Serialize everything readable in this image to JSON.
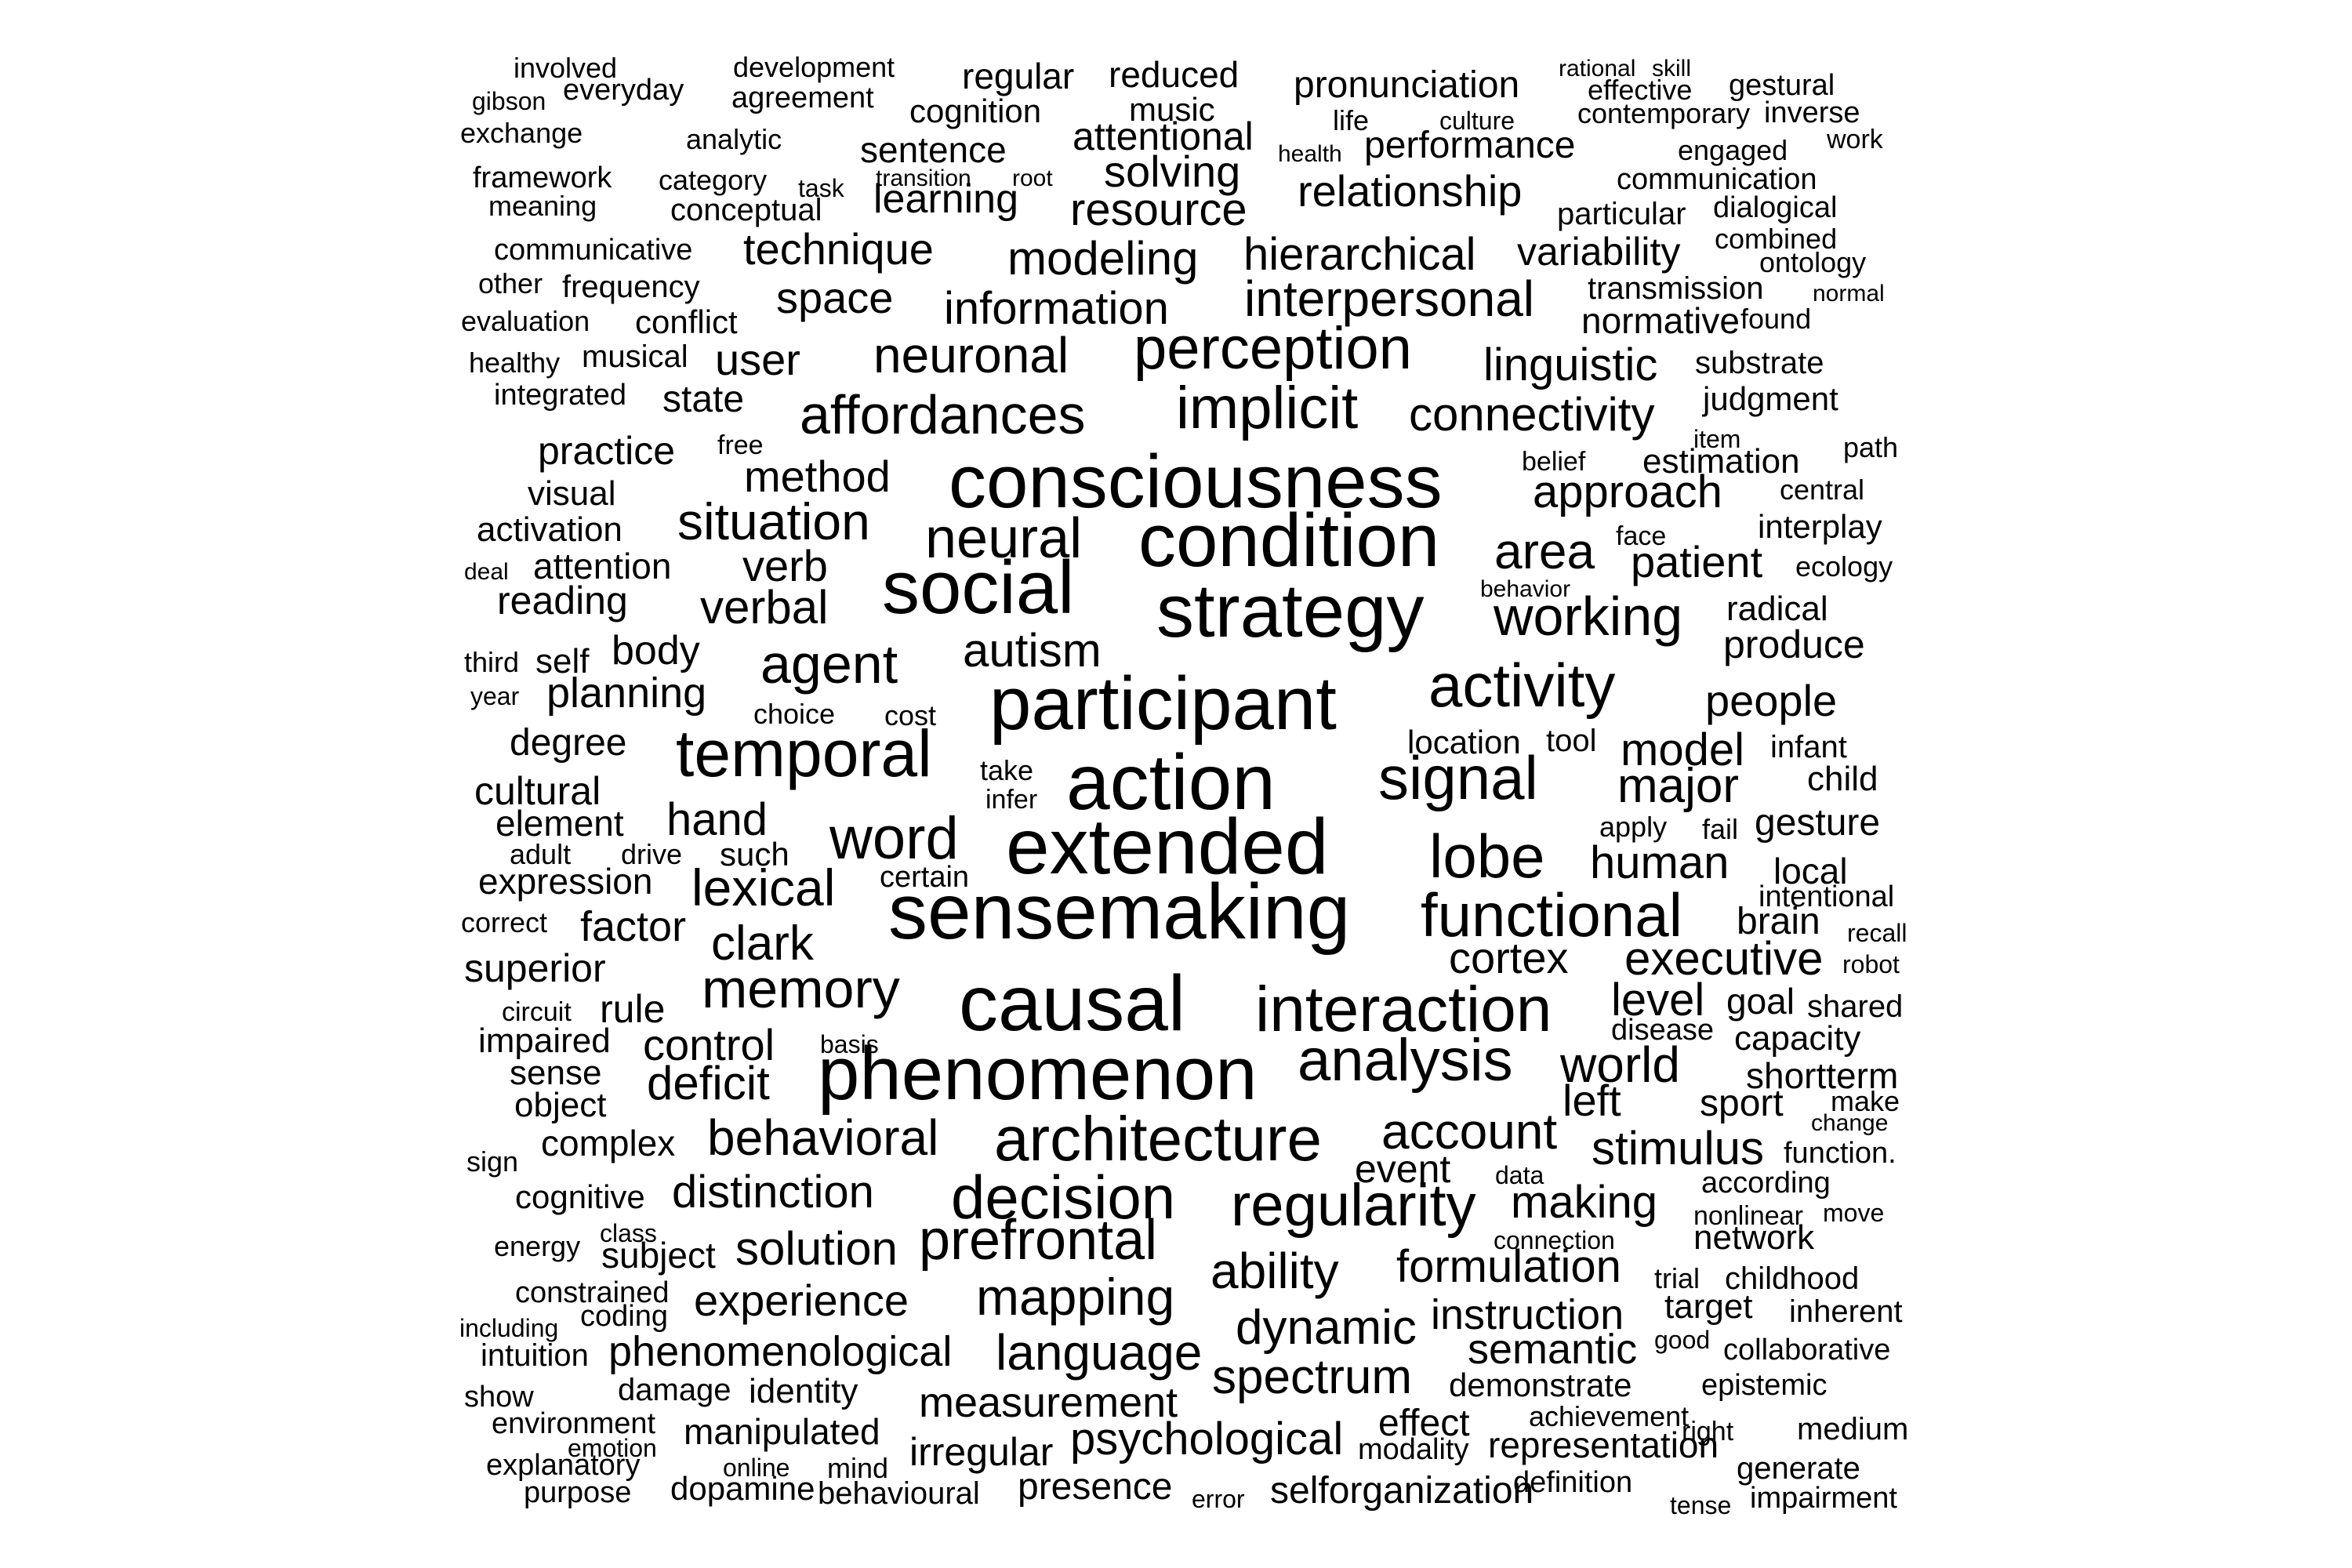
{
  "word_cloud": {
    "text_color": "#000000",
    "background": "#ffffff",
    "words": [
      "involved",
      "development",
      "gibson",
      "everyday",
      "agreement",
      "exchange",
      "analytic",
      "framework",
      "category",
      "task",
      "transition",
      "root",
      "meaning",
      "conceptual",
      "regular",
      "reduced",
      "cognition",
      "music",
      "sentence",
      "attentional",
      "solving",
      "learning",
      "resource",
      "pronunciation",
      "life",
      "culture",
      "health",
      "performance",
      "relationship",
      "rational",
      "skill",
      "effective",
      "gestural",
      "contemporary",
      "inverse",
      "engaged",
      "work",
      "communication",
      "particular",
      "dialogical",
      "communicative",
      "other",
      "frequency",
      "evaluation",
      "conflict",
      "healthy",
      "musical",
      "integrated",
      "state",
      "technique",
      "modeling",
      "space",
      "information",
      "user",
      "hierarchical",
      "interpersonal",
      "variability",
      "combined",
      "ontology",
      "transmission",
      "normal",
      "normative",
      "found",
      "neuronal",
      "perception",
      "linguistic",
      "substrate",
      "affordances",
      "implicit",
      "connectivity",
      "judgment",
      "item",
      "path",
      "free",
      "practice",
      "method",
      "belief",
      "estimation",
      "consciousness",
      "visual",
      "central",
      "approach",
      "situation",
      "activation",
      "interplay",
      "face",
      "neural",
      "condition",
      "area",
      "patient",
      "deal",
      "attention",
      "verb",
      "ecology",
      "behavior",
      "reading",
      "social",
      "strategy",
      "working",
      "radical",
      "verbal",
      "produce",
      "body",
      "third",
      "self",
      "autism",
      "agent",
      "year",
      "planning",
      "participant",
      "activity",
      "people",
      "choice",
      "cost",
      "degree",
      "location",
      "tool",
      "infant",
      "temporal",
      "model",
      "cultural",
      "signal",
      "major",
      "child",
      "take",
      "infer",
      "action",
      "element",
      "hand",
      "apply",
      "fail",
      "gesture",
      "word",
      "adult",
      "drive",
      "such",
      "extended",
      "lobe",
      "human",
      "local",
      "expression",
      "certain",
      "lexical",
      "intentional",
      "correct",
      "factor",
      "sensemaking",
      "functional",
      "brain",
      "recall",
      "clark",
      "superior",
      "cortex",
      "executive",
      "robot",
      "memory",
      "circuit",
      "rule",
      "level",
      "goal",
      "shared",
      "causal",
      "interaction",
      "impaired",
      "basis",
      "disease",
      "capacity",
      "control",
      "sense",
      "analysis",
      "world",
      "shortterm",
      "deficit",
      "object",
      "phenomenon",
      "left",
      "sport",
      "make",
      "complex",
      "change",
      "behavioral",
      "account",
      "sign",
      "architecture",
      "stimulus",
      "function.",
      "event",
      "data",
      "according",
      "cognitive",
      "distinction",
      "decision",
      "making",
      "class",
      "move",
      "nonlinear",
      "energy",
      "regularity",
      "connection",
      "network",
      "subject",
      "solution",
      "prefrontal",
      "ability",
      "formulation",
      "trial",
      "childhood",
      "constrained",
      "experience",
      "mapping",
      "target",
      "inherent",
      "including",
      "coding",
      "dynamic",
      "instruction",
      "good",
      "intuition",
      "phenomenological",
      "collaborative",
      "language",
      "semantic",
      "spectrum",
      "show",
      "damage",
      "identity",
      "demonstrate",
      "epistemic",
      "measurement",
      "environment",
      "achievement",
      "manipulated",
      "effect",
      "right",
      "medium",
      "emotion",
      "psychological",
      "modality",
      "representation",
      "explanatory",
      "online",
      "mind",
      "irregular",
      "generate",
      "definition",
      "purpose",
      "dopamine",
      "behavioural",
      "presence",
      "error",
      "selforganization",
      "tense",
      "impairment"
    ]
  }
}
